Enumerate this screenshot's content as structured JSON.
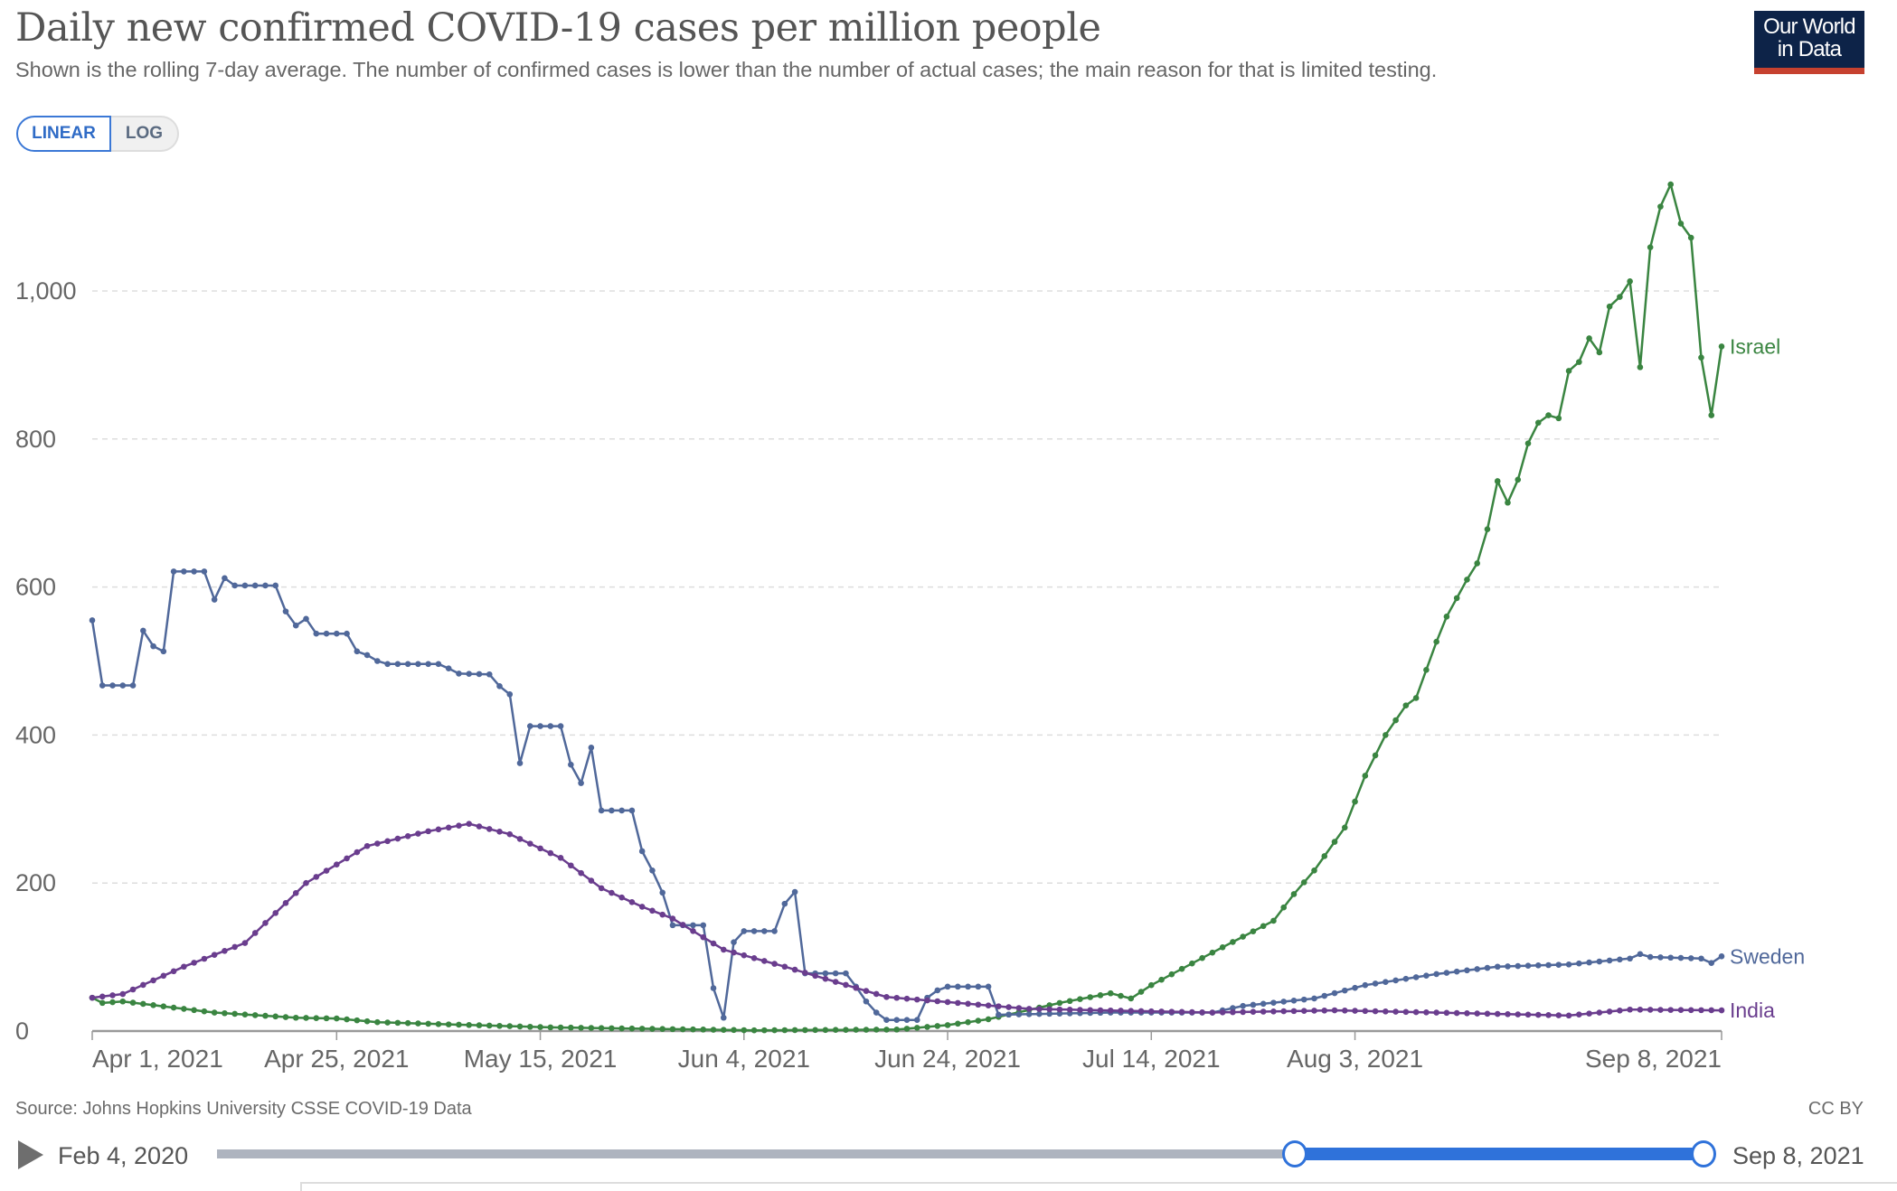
{
  "header": {
    "title": "Daily new confirmed COVID-19 cases per million people",
    "subtitle": "Shown is the rolling 7-day average. The number of confirmed cases is lower than the number of actual cases; the main reason for that is limited testing.",
    "scale_toggle": {
      "linear": "LINEAR",
      "log": "LOG",
      "selected": "LINEAR"
    },
    "logo_line1": "Our World",
    "logo_line2": "in Data"
  },
  "footer": {
    "source": "Source: Johns Hopkins University CSSE COVID-19 Data",
    "license": "CC BY"
  },
  "timeline": {
    "start_label": "Feb 4, 2020",
    "end_label": "Sep 8, 2021",
    "play_icon": "play-icon",
    "accent": "#2f72da"
  },
  "chart_data": {
    "type": "line",
    "title": "Daily new confirmed COVID-19 cases per million people",
    "xlabel": "",
    "ylabel": "",
    "x_start": "Apr 1, 2021",
    "x_range_days": [
      0,
      160
    ],
    "ylim": [
      0,
      1150
    ],
    "grid": true,
    "y_ticks": [
      {
        "value": 0,
        "label": "0"
      },
      {
        "value": 200,
        "label": "200"
      },
      {
        "value": 400,
        "label": "400"
      },
      {
        "value": 600,
        "label": "600"
      },
      {
        "value": 800,
        "label": "800"
      },
      {
        "value": 1000,
        "label": "1,000"
      }
    ],
    "x_ticks": [
      {
        "day": 0,
        "label": "Apr 1, 2021"
      },
      {
        "day": 24,
        "label": "Apr 25, 2021"
      },
      {
        "day": 44,
        "label": "May 15, 2021"
      },
      {
        "day": 64,
        "label": "Jun 4, 2021"
      },
      {
        "day": 84,
        "label": "Jun 24, 2021"
      },
      {
        "day": 104,
        "label": "Jul 14, 2021"
      },
      {
        "day": 124,
        "label": "Aug 3, 2021"
      },
      {
        "day": 160,
        "label": "Sep 8, 2021"
      }
    ],
    "series": [
      {
        "name": "Israel",
        "color": "#3a8541",
        "points": [
          [
            0,
            45
          ],
          [
            1,
            38
          ],
          [
            3,
            40
          ],
          [
            6,
            35
          ],
          [
            12,
            25
          ],
          [
            20,
            18
          ],
          [
            24,
            17
          ],
          [
            28,
            12
          ],
          [
            35,
            9
          ],
          [
            45,
            5
          ],
          [
            55,
            3
          ],
          [
            65,
            1
          ],
          [
            79,
            2
          ],
          [
            84,
            8
          ],
          [
            88,
            16
          ],
          [
            95,
            38
          ],
          [
            100,
            51
          ],
          [
            102,
            44
          ],
          [
            104,
            62
          ],
          [
            110,
            106
          ],
          [
            116,
            149
          ],
          [
            118,
            185
          ],
          [
            120,
            217
          ],
          [
            123,
            275
          ],
          [
            125,
            345
          ],
          [
            127,
            400
          ],
          [
            129,
            440
          ],
          [
            130,
            450
          ],
          [
            132,
            526
          ],
          [
            133,
            560
          ],
          [
            135,
            610
          ],
          [
            136,
            632
          ],
          [
            137,
            678
          ],
          [
            138,
            743
          ],
          [
            139,
            714
          ],
          [
            140,
            745
          ],
          [
            141,
            794
          ],
          [
            142,
            822
          ],
          [
            143,
            832
          ],
          [
            144,
            828
          ],
          [
            145,
            892
          ],
          [
            146,
            904
          ],
          [
            147,
            936
          ],
          [
            148,
            917
          ],
          [
            149,
            979
          ],
          [
            150,
            992
          ],
          [
            151,
            1013
          ],
          [
            152,
            897
          ],
          [
            153,
            1059
          ],
          [
            154,
            1114
          ],
          [
            155,
            1144
          ],
          [
            156,
            1091
          ],
          [
            157,
            1072
          ],
          [
            158,
            910
          ],
          [
            159,
            832
          ],
          [
            160,
            925
          ]
        ]
      },
      {
        "name": "Sweden",
        "color": "#50689a",
        "points": [
          [
            0,
            555
          ],
          [
            1,
            467
          ],
          [
            4,
            467
          ],
          [
            5,
            541
          ],
          [
            6,
            520
          ],
          [
            7,
            513
          ],
          [
            8,
            621
          ],
          [
            11,
            621
          ],
          [
            12,
            583
          ],
          [
            13,
            612
          ],
          [
            14,
            602
          ],
          [
            18,
            602
          ],
          [
            19,
            567
          ],
          [
            20,
            548
          ],
          [
            21,
            557
          ],
          [
            22,
            537
          ],
          [
            25,
            537
          ],
          [
            26,
            513
          ],
          [
            27,
            508
          ],
          [
            28,
            500
          ],
          [
            29,
            496
          ],
          [
            34,
            496
          ],
          [
            35,
            490
          ],
          [
            36,
            483
          ],
          [
            39,
            482
          ],
          [
            40,
            466
          ],
          [
            41,
            455
          ],
          [
            42,
            362
          ],
          [
            43,
            412
          ],
          [
            46,
            412
          ],
          [
            47,
            360
          ],
          [
            48,
            335
          ],
          [
            49,
            383
          ],
          [
            50,
            298
          ],
          [
            53,
            298
          ],
          [
            54,
            243
          ],
          [
            55,
            217
          ],
          [
            56,
            187
          ],
          [
            57,
            143
          ],
          [
            60,
            143
          ],
          [
            61,
            58
          ],
          [
            62,
            18
          ],
          [
            63,
            120
          ],
          [
            64,
            135
          ],
          [
            67,
            135
          ],
          [
            68,
            172
          ],
          [
            69,
            188
          ],
          [
            70,
            78
          ],
          [
            74,
            78
          ],
          [
            75,
            60
          ],
          [
            76,
            40
          ],
          [
            77,
            25
          ],
          [
            78,
            15
          ],
          [
            81,
            15
          ],
          [
            82,
            45
          ],
          [
            83,
            55
          ],
          [
            84,
            60
          ],
          [
            88,
            60
          ],
          [
            89,
            22
          ],
          [
            100,
            25
          ],
          [
            110,
            25
          ],
          [
            113,
            34
          ],
          [
            120,
            44
          ],
          [
            125,
            62
          ],
          [
            132,
            77
          ],
          [
            138,
            87
          ],
          [
            145,
            90
          ],
          [
            151,
            98
          ],
          [
            152,
            104
          ],
          [
            153,
            100
          ],
          [
            158,
            98
          ],
          [
            159,
            92
          ],
          [
            160,
            101
          ]
        ]
      },
      {
        "name": "India",
        "color": "#6a3d8e",
        "points": [
          [
            0,
            45
          ],
          [
            3,
            50
          ],
          [
            9,
            87
          ],
          [
            15,
            119
          ],
          [
            21,
            200
          ],
          [
            27,
            250
          ],
          [
            33,
            270
          ],
          [
            37,
            280
          ],
          [
            41,
            266
          ],
          [
            46,
            234
          ],
          [
            50,
            193
          ],
          [
            54,
            168
          ],
          [
            57,
            152
          ],
          [
            62,
            110
          ],
          [
            68,
            87
          ],
          [
            78,
            46
          ],
          [
            92,
            30
          ],
          [
            110,
            25
          ],
          [
            122,
            28
          ],
          [
            145,
            21
          ],
          [
            151,
            29
          ],
          [
            160,
            28
          ]
        ]
      }
    ]
  }
}
